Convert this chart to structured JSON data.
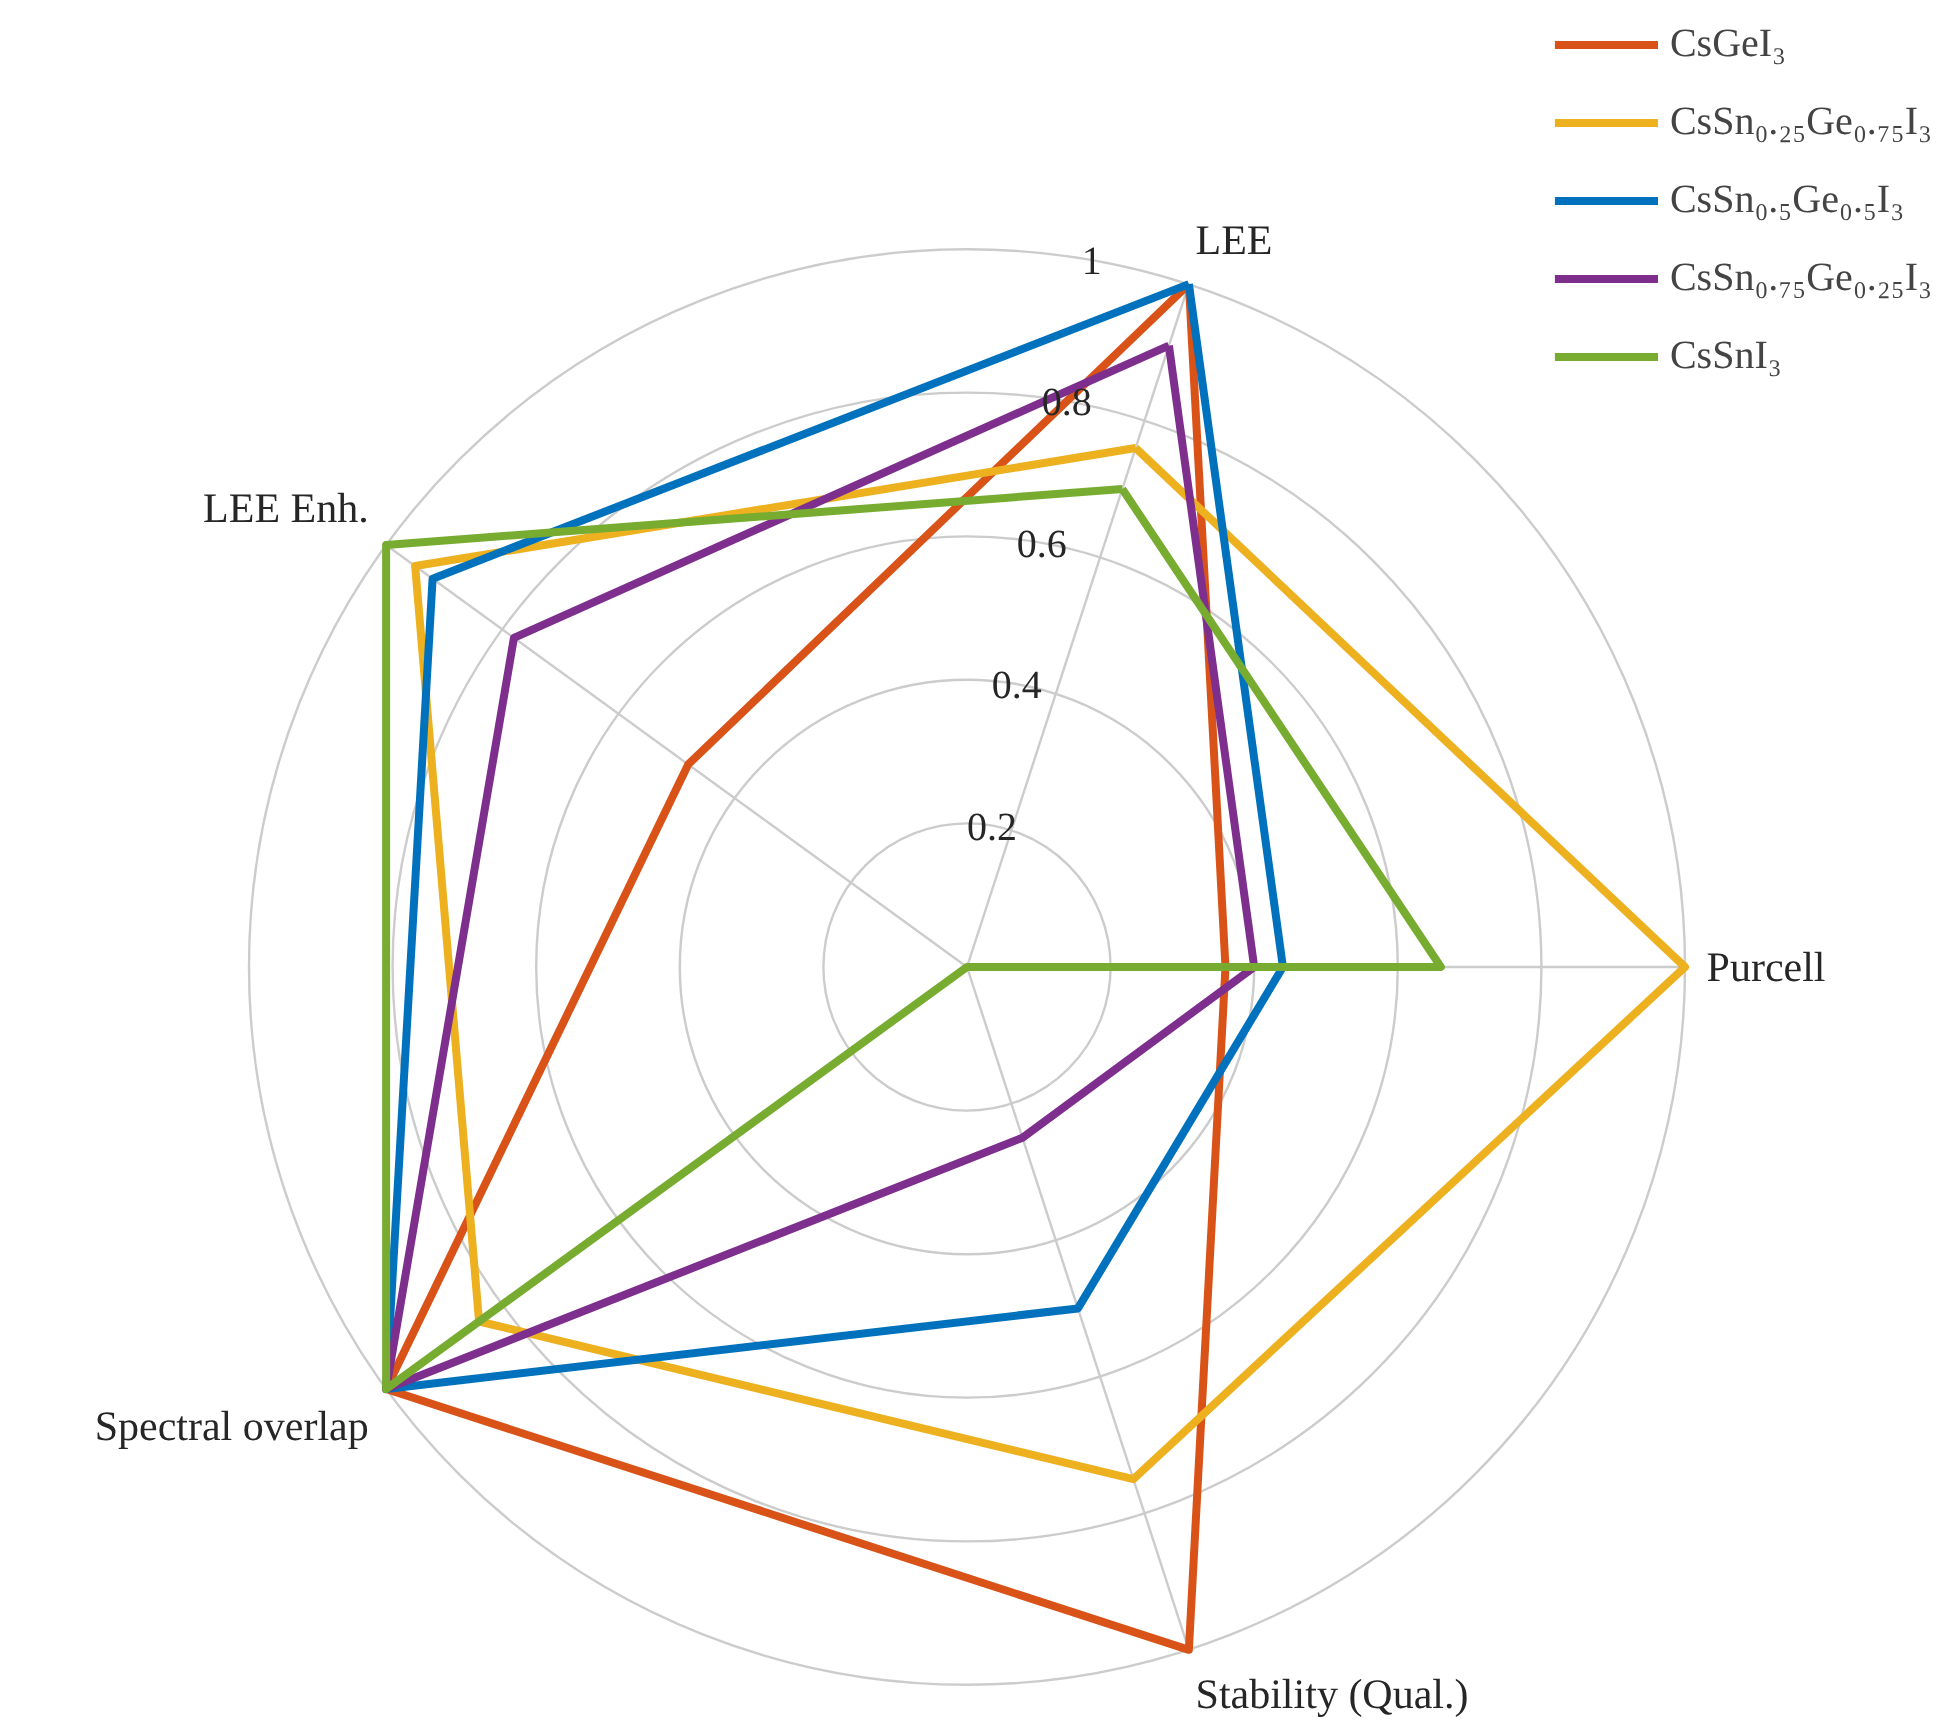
{
  "chart_data": {
    "type": "radar",
    "categories": [
      "LEE",
      "Purcell",
      "Stability (Qual.)",
      "Spectral overlap",
      "LEE Enh."
    ],
    "series": [
      {
        "name": "CsGeI₃",
        "color": "#d95319",
        "values": [
          1.0,
          0.36,
          1.0,
          1.0,
          0.48
        ]
      },
      {
        "name": "CsSn₀.₂₅Ge₀.₇₅I₃",
        "color": "#edb120",
        "values": [
          0.76,
          1.0,
          0.75,
          0.84,
          0.95
        ]
      },
      {
        "name": "CsSn₀.₅Ge₀.₅I₃",
        "color": "#0072bd",
        "values": [
          1.0,
          0.44,
          0.5,
          1.0,
          0.92
        ]
      },
      {
        "name": "CsSn₀.₇₅Ge₀.₂₅I₃",
        "color": "#7e2f8e",
        "values": [
          0.91,
          0.4,
          0.25,
          1.0,
          0.78
        ]
      },
      {
        "name": "CsSnI₃",
        "color": "#77ac30",
        "values": [
          0.7,
          0.66,
          0,
          1.0,
          1.0
        ]
      }
    ],
    "ylim": [
      0,
      1
    ],
    "yticks": [
      0.2,
      0.4,
      0.6,
      0.8,
      1
    ],
    "grid": true,
    "legend": "top right"
  }
}
